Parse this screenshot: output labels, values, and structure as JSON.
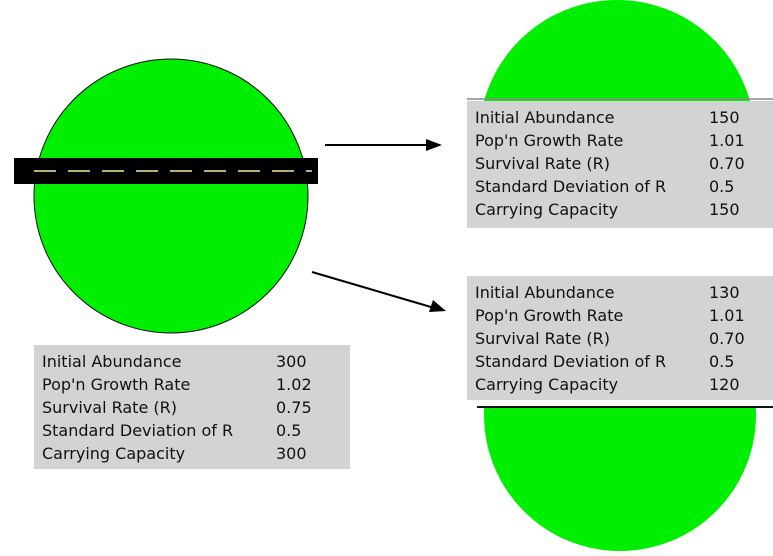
{
  "colors": {
    "habitat": "#00ee00",
    "habitat_outline": "#111111",
    "road": "#000000",
    "road_marking": "#b8b070",
    "table_background": "#d3d3d3",
    "arrow": "#000000"
  },
  "icons": {
    "road": "road-barrier-icon",
    "arrow": "arrow-right-icon"
  },
  "tables": {
    "original": {
      "rows": [
        {
          "label": "Initial Abundance",
          "value": "300"
        },
        {
          "label": "Pop'n Growth Rate",
          "value": "1.02"
        },
        {
          "label": "Survival Rate (R)",
          "value": "0.75"
        },
        {
          "label": "Standard Deviation of R",
          "value": "0.5"
        },
        {
          "label": "Carrying Capacity",
          "value": "300"
        }
      ]
    },
    "upper": {
      "rows": [
        {
          "label": "Initial Abundance",
          "value": "150"
        },
        {
          "label": "Pop'n Growth Rate",
          "value": "1.01"
        },
        {
          "label": "Survival Rate (R)",
          "value": "0.70"
        },
        {
          "label": "Standard Deviation of R",
          "value": "0.5"
        },
        {
          "label": "Carrying Capacity",
          "value": "150"
        }
      ]
    },
    "lower": {
      "rows": [
        {
          "label": "Initial Abundance",
          "value": "130"
        },
        {
          "label": "Pop'n Growth Rate",
          "value": "1.01"
        },
        {
          "label": "Survival Rate (R)",
          "value": "0.70"
        },
        {
          "label": "Standard Deviation of R",
          "value": "0.5"
        },
        {
          "label": "Carrying Capacity",
          "value": "120"
        }
      ]
    }
  }
}
